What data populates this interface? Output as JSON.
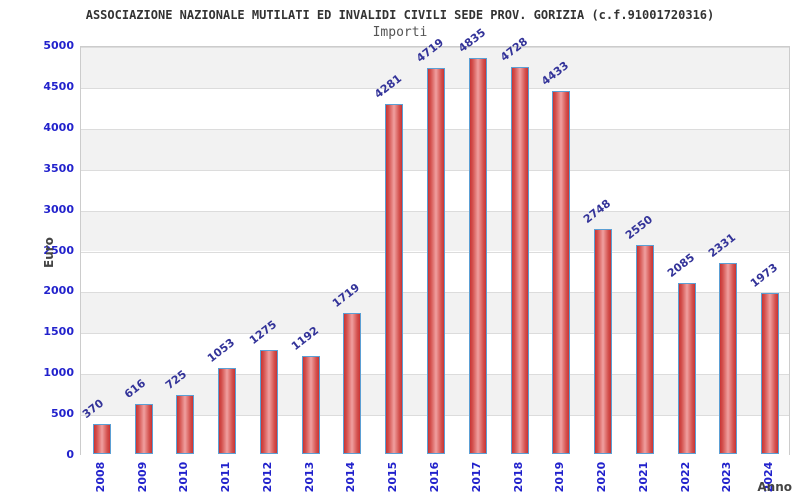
{
  "title": "ASSOCIAZIONE NAZIONALE MUTILATI ED INVALIDI CIVILI SEDE PROV. GORIZIA (c.f.91001720316)",
  "chart_data": {
    "type": "bar",
    "title": "Importi",
    "xlabel": "Anno",
    "ylabel": "Euro",
    "categories": [
      "2008",
      "2009",
      "2010",
      "2011",
      "2012",
      "2013",
      "2014",
      "2015",
      "2016",
      "2017",
      "2018",
      "2019",
      "2020",
      "2021",
      "2022",
      "2023",
      "2024"
    ],
    "values": [
      370,
      616,
      725,
      1053,
      1275,
      1192,
      1719,
      4281,
      4719,
      4835,
      4728,
      4433,
      2748,
      2550,
      2085,
      2331,
      1973
    ],
    "ylim": [
      0,
      5000
    ],
    "ytick_step": 500,
    "grid": "horizontal-bands",
    "legend": "none",
    "bar_labels_shown": true
  },
  "colors": {
    "bar_fill_dark": "#c93434",
    "bar_fill_light": "#f0a0a0",
    "bar_border": "#5b9fd4",
    "tick_label": "#2222cc",
    "value_label": "#333399",
    "band_gray": "#f2f2f2",
    "band_white": "#ffffff",
    "gridline": "#dcdcdc",
    "plot_border": "#cccccc",
    "title_text": "#333333",
    "subtitle_text": "#555555",
    "axis_label_text": "#444444"
  }
}
